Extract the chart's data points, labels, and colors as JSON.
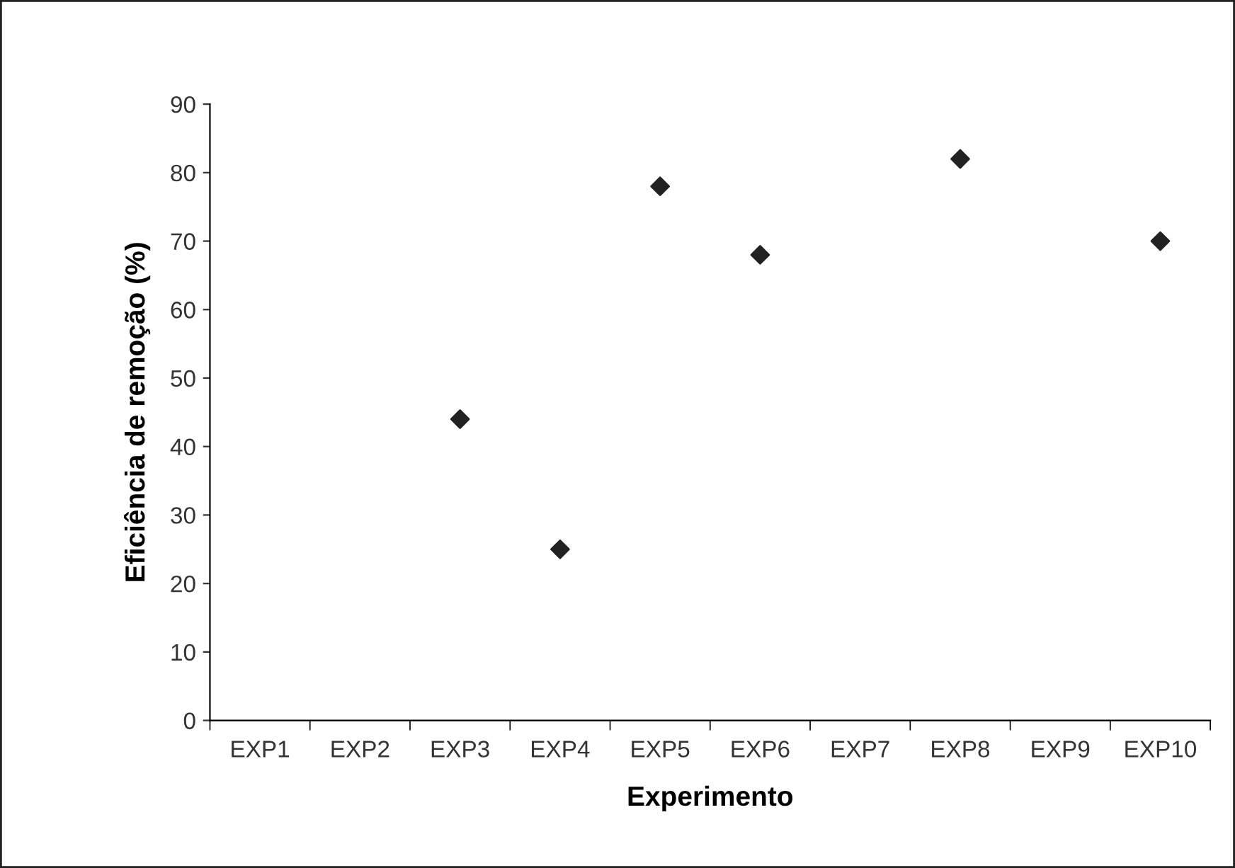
{
  "chart_data": {
    "type": "scatter",
    "xlabel": "Experimento",
    "ylabel": "Eficiência de remoção (%)",
    "categories": [
      "EXP1",
      "EXP2",
      "EXP3",
      "EXP4",
      "EXP5",
      "EXP6",
      "EXP7",
      "EXP8",
      "EXP9",
      "EXP10"
    ],
    "series": [
      {
        "color": "#222222",
        "values": [
          null,
          null,
          44,
          25,
          78,
          68,
          null,
          82,
          null,
          70
        ]
      }
    ],
    "ylim": [
      0,
      90
    ],
    "yticks": [
      0,
      10,
      20,
      30,
      40,
      50,
      60,
      70,
      80,
      90
    ],
    "marker": "diamond",
    "grid": false,
    "legend": false
  }
}
